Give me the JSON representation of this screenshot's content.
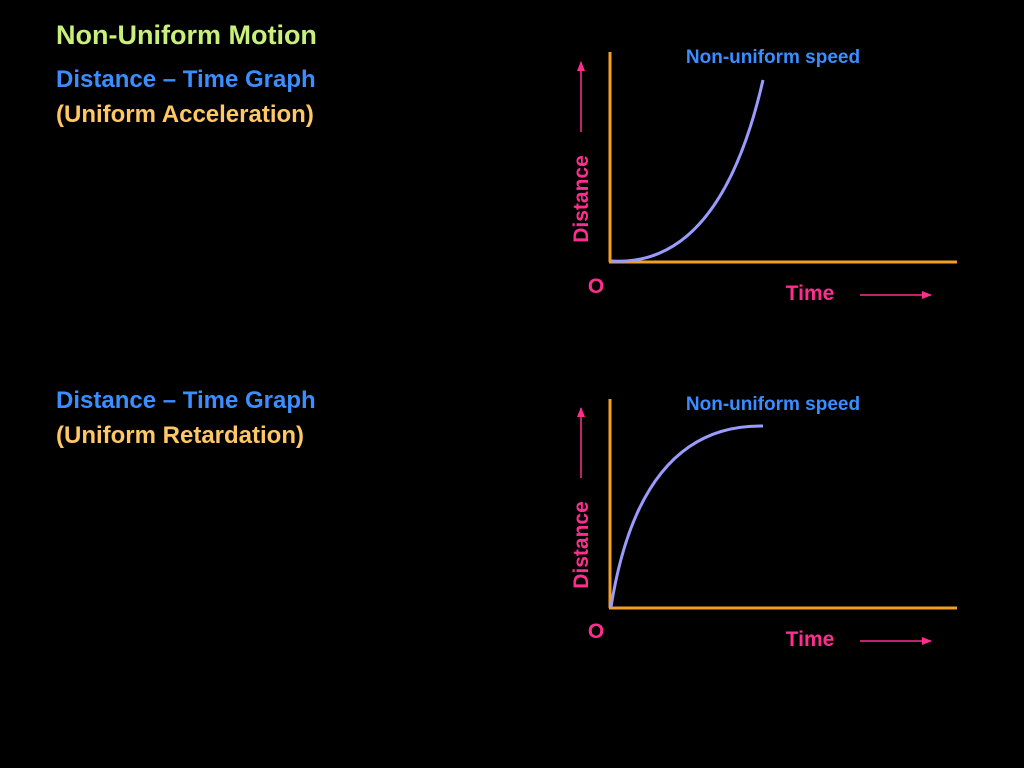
{
  "title": "Non-Uniform Motion",
  "sections": [
    {
      "heading": "Distance – Time Graph",
      "subheading": "(Uniform Acceleration)"
    },
    {
      "heading": "Distance – Time Graph",
      "subheading": "(Uniform Retardation)"
    }
  ],
  "graphs": [
    {
      "curve_label": "Non-uniform speed",
      "y_label": "Distance",
      "x_label": "Time",
      "origin_label": "O",
      "curve_shape": "concave-up"
    },
    {
      "curve_label": "Non-uniform speed",
      "y_label": "Distance",
      "x_label": "Time",
      "origin_label": "O",
      "curve_shape": "concave-down"
    }
  ],
  "colors": {
    "background": "#000000",
    "title": "#c8f07a",
    "heading": "#3a8eff",
    "subheading": "#ffc864",
    "axis": "#f5a020",
    "curve": "#9a9aff",
    "axis_label": "#ff2e8e",
    "curve_label": "#3a8eff"
  }
}
